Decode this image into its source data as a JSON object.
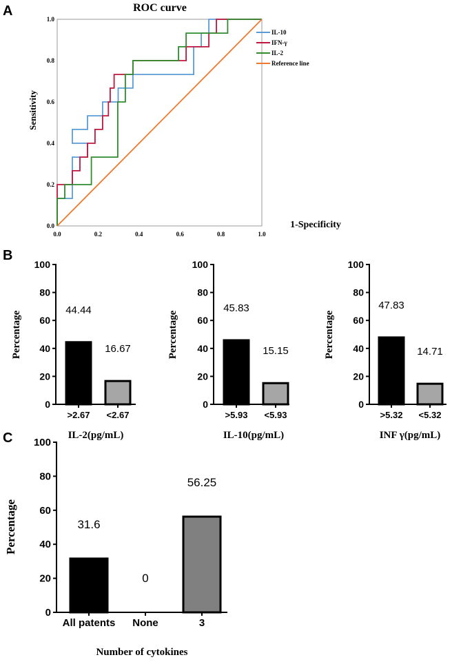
{
  "panels": {
    "a": "A",
    "b": "B",
    "c": "C"
  },
  "chart_data": [
    {
      "id": "roc",
      "type": "line",
      "title": "ROC curve",
      "xlabel": "1-Specificity",
      "ylabel": "Sensitivity",
      "xlim": [
        0,
        1
      ],
      "ylim": [
        0,
        1
      ],
      "xticks": [
        "0.0",
        "0.2",
        "0.4",
        "0.6",
        "0.8",
        "1.0"
      ],
      "yticks": [
        "0.0",
        "0.2",
        "0.4",
        "0.6",
        "0.8",
        "1.0"
      ],
      "legend_position": "top-right",
      "series": [
        {
          "name": "IL-10",
          "color": "#5b9bd5",
          "points": [
            [
              0,
              0
            ],
            [
              0,
              0.133
            ],
            [
              0.074,
              0.133
            ],
            [
              0.074,
              0.333
            ],
            [
              0.148,
              0.333
            ],
            [
              0.148,
              0.4
            ],
            [
              0.074,
              0.4
            ],
            [
              0.074,
              0.467
            ],
            [
              0.148,
              0.467
            ],
            [
              0.148,
              0.533
            ],
            [
              0.222,
              0.533
            ],
            [
              0.222,
              0.6
            ],
            [
              0.298,
              0.6
            ],
            [
              0.298,
              0.667
            ],
            [
              0.37,
              0.667
            ],
            [
              0.37,
              0.733
            ],
            [
              0.444,
              0.733
            ],
            [
              0.444,
              0.733
            ],
            [
              0.667,
              0.733
            ],
            [
              0.667,
              0.867
            ],
            [
              0.704,
              0.867
            ],
            [
              0.704,
              0.933
            ],
            [
              0.741,
              0.933
            ],
            [
              0.741,
              1
            ],
            [
              1,
              1
            ]
          ]
        },
        {
          "name": "IFN-γ",
          "color": "#c0163e",
          "points": [
            [
              0,
              0
            ],
            [
              0,
              0.2
            ],
            [
              0.074,
              0.2
            ],
            [
              0.074,
              0.267
            ],
            [
              0.111,
              0.267
            ],
            [
              0.111,
              0.333
            ],
            [
              0.148,
              0.333
            ],
            [
              0.148,
              0.4
            ],
            [
              0.185,
              0.4
            ],
            [
              0.185,
              0.467
            ],
            [
              0.222,
              0.467
            ],
            [
              0.222,
              0.533
            ],
            [
              0.25,
              0.533
            ],
            [
              0.25,
              0.6
            ],
            [
              0.259,
              0.6
            ],
            [
              0.259,
              0.667
            ],
            [
              0.278,
              0.667
            ],
            [
              0.278,
              0.733
            ],
            [
              0.37,
              0.733
            ],
            [
              0.37,
              0.8
            ],
            [
              0.63,
              0.8
            ],
            [
              0.63,
              0.867
            ],
            [
              0.741,
              0.867
            ],
            [
              0.741,
              0.933
            ],
            [
              0.778,
              0.933
            ],
            [
              0.778,
              1
            ],
            [
              1,
              1
            ]
          ]
        },
        {
          "name": "IL-2",
          "color": "#2e8b2e",
          "points": [
            [
              0,
              0
            ],
            [
              0,
              0.133
            ],
            [
              0.037,
              0.133
            ],
            [
              0.037,
              0.2
            ],
            [
              0.167,
              0.2
            ],
            [
              0.167,
              0.333
            ],
            [
              0.296,
              0.333
            ],
            [
              0.296,
              0.6
            ],
            [
              0.333,
              0.6
            ],
            [
              0.333,
              0.733
            ],
            [
              0.37,
              0.733
            ],
            [
              0.37,
              0.8
            ],
            [
              0.593,
              0.8
            ],
            [
              0.593,
              0.867
            ],
            [
              0.63,
              0.867
            ],
            [
              0.63,
              0.933
            ],
            [
              0.833,
              0.933
            ],
            [
              0.833,
              1
            ],
            [
              1,
              1
            ]
          ]
        },
        {
          "name": "Reference line",
          "color": "#f0782d",
          "points": [
            [
              0,
              0
            ],
            [
              1,
              1
            ]
          ]
        }
      ]
    },
    {
      "id": "b1",
      "type": "bar",
      "xlabel": "IL-2(pg/mL)",
      "ylabel": "Percentage",
      "ylim": [
        0,
        100
      ],
      "yticks": [
        "0",
        "20",
        "40",
        "60",
        "80",
        "100"
      ],
      "categories": [
        ">2.67",
        "<2.67"
      ],
      "values": [
        44.44,
        16.67
      ],
      "value_labels": [
        "44.44",
        "16.67"
      ],
      "colors": [
        "#000000",
        "#a6a6a6"
      ]
    },
    {
      "id": "b2",
      "type": "bar",
      "xlabel": "IL-10(pg/mL)",
      "ylabel": "Percentage",
      "ylim": [
        0,
        100
      ],
      "yticks": [
        "0",
        "20",
        "40",
        "60",
        "80",
        "100"
      ],
      "categories": [
        ">5.93",
        "<5.93"
      ],
      "values": [
        45.83,
        15.15
      ],
      "value_labels": [
        "45.83",
        "15.15"
      ],
      "colors": [
        "#000000",
        "#a6a6a6"
      ]
    },
    {
      "id": "b3",
      "type": "bar",
      "xlabel": "INF γ(pg/mL)",
      "ylabel": "Percentage",
      "ylim": [
        0,
        100
      ],
      "yticks": [
        "0",
        "20",
        "40",
        "60",
        "80",
        "100"
      ],
      "categories": [
        ">5.32",
        "<5.32"
      ],
      "values": [
        47.83,
        14.71
      ],
      "value_labels": [
        "47.83",
        "14.71"
      ],
      "colors": [
        "#000000",
        "#a6a6a6"
      ]
    },
    {
      "id": "c",
      "type": "bar",
      "xlabel": "Number of cytokines",
      "ylabel": "Percentage",
      "ylim": [
        0,
        100
      ],
      "yticks": [
        "0",
        "20",
        "40",
        "60",
        "80",
        "100"
      ],
      "categories": [
        "All patents",
        "None",
        "3"
      ],
      "values": [
        31.6,
        0,
        56.25
      ],
      "value_labels": [
        "31.6",
        "0",
        "56.25"
      ],
      "colors": [
        "#000000",
        "#ffffff",
        "#808080"
      ]
    }
  ]
}
